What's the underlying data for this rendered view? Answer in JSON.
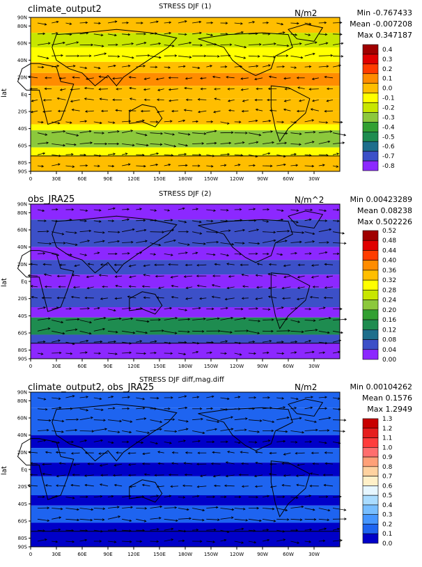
{
  "chart_data": [
    {
      "type": "heatmap",
      "title": "STRESS DJF (1)",
      "left_label": "climate_output2",
      "units": "N/m2",
      "stats": {
        "min": "Min -0.767433",
        "mean": "Mean -0.007208",
        "max": "Max 0.347187"
      },
      "ylabel": "lat",
      "xticks": [
        "0",
        "30E",
        "60E",
        "90E",
        "120E",
        "150E",
        "180W",
        "150W",
        "120W",
        "90W",
        "60W",
        "30W"
      ],
      "yticks": [
        "90N",
        "80N",
        "60N",
        "40N",
        "20N",
        "Eq",
        "20S",
        "40S",
        "60S",
        "80S",
        "90S"
      ],
      "colorbar": {
        "labels": [
          "0.4",
          "0.3",
          "0.2",
          "0.1",
          "0.0",
          "-0.1",
          "-0.2",
          "-0.3",
          "-0.4",
          "-0.5",
          "-0.6",
          "-0.7",
          "-0.8"
        ],
        "colors": [
          "#a00000",
          "#e00000",
          "#ff3c00",
          "#ff8c00",
          "#ffbe00",
          "#ffff00",
          "#c8e600",
          "#8cc83c",
          "#32a032",
          "#1e8c50",
          "#1e6e8c",
          "#3c50c8",
          "#8c28ff"
        ]
      },
      "bands": [
        {
          "lat_from": 90,
          "lat_to": 72,
          "color": "#ffbe00"
        },
        {
          "lat_from": 72,
          "lat_to": 55,
          "color": "#c8e600"
        },
        {
          "lat_from": 55,
          "lat_to": 38,
          "color": "#ffff00"
        },
        {
          "lat_from": 38,
          "lat_to": 25,
          "color": "#ffbe00"
        },
        {
          "lat_from": 25,
          "lat_to": 10,
          "color": "#ff8c00"
        },
        {
          "lat_from": 10,
          "lat_to": -5,
          "color": "#ffbe00"
        },
        {
          "lat_from": -5,
          "lat_to": -20,
          "color": "#ffbe00"
        },
        {
          "lat_from": -20,
          "lat_to": -35,
          "color": "#ffbe00"
        },
        {
          "lat_from": -35,
          "lat_to": -42,
          "color": "#ffff00"
        },
        {
          "lat_from": -42,
          "lat_to": -62,
          "color": "#8cc83c"
        },
        {
          "lat_from": -62,
          "lat_to": -72,
          "color": "#ffff00"
        },
        {
          "lat_from": -72,
          "lat_to": -90,
          "color": "#ffbe00"
        }
      ]
    },
    {
      "type": "heatmap",
      "title": "STRESS DJF (2)",
      "left_label": "obs_JRA25",
      "units": "N/m^2",
      "stats": {
        "min": "Min 0.00423289",
        "mean": "Mean 0.08238",
        "max": "Max 0.502226"
      },
      "ylabel": "lat",
      "xticks": [
        "0",
        "30E",
        "60E",
        "90E",
        "120E",
        "150E",
        "180W",
        "150W",
        "120W",
        "90W",
        "60W",
        "30W"
      ],
      "yticks": [
        "90N",
        "80N",
        "60N",
        "40N",
        "20N",
        "Eq",
        "20S",
        "40S",
        "60S",
        "80S",
        "90S"
      ],
      "colorbar": {
        "labels": [
          "0.52",
          "0.48",
          "0.44",
          "0.40",
          "0.36",
          "0.32",
          "0.28",
          "0.24",
          "0.20",
          "0.16",
          "0.12",
          "0.08",
          "0.04",
          "0.00"
        ],
        "colors": [
          "#a00000",
          "#e00000",
          "#ff3c00",
          "#ff8c00",
          "#ffbe00",
          "#ffff00",
          "#c8e600",
          "#8cc83c",
          "#32a032",
          "#1e8c50",
          "#1e6e8c",
          "#3c50c8",
          "#8c28ff"
        ]
      },
      "bands": [
        {
          "lat_from": 90,
          "lat_to": 72,
          "color": "#8c28ff"
        },
        {
          "lat_from": 72,
          "lat_to": 40,
          "color": "#3c50c8"
        },
        {
          "lat_from": 40,
          "lat_to": 25,
          "color": "#8c28ff"
        },
        {
          "lat_from": 25,
          "lat_to": 8,
          "color": "#3c50c8"
        },
        {
          "lat_from": 8,
          "lat_to": -8,
          "color": "#8c28ff"
        },
        {
          "lat_from": -8,
          "lat_to": -30,
          "color": "#3c50c8"
        },
        {
          "lat_from": -30,
          "lat_to": -42,
          "color": "#8c28ff"
        },
        {
          "lat_from": -42,
          "lat_to": -62,
          "color": "#1e8c50"
        },
        {
          "lat_from": -62,
          "lat_to": -72,
          "color": "#3c50c8"
        },
        {
          "lat_from": -72,
          "lat_to": -90,
          "color": "#8c28ff"
        }
      ]
    },
    {
      "type": "heatmap",
      "title": "STRESS DJF diff,mag.diff",
      "left_label": "climate_output2, obs_JRA25",
      "units": "N/m2",
      "stats": {
        "min": "Min 0.00104262",
        "mean": "Mean 0.1576",
        "max": "Max 1.2949"
      },
      "ylabel": "lat",
      "xticks": [
        "0",
        "30E",
        "60E",
        "90E",
        "120E",
        "150E",
        "180W",
        "150W",
        "120W",
        "90W",
        "60W",
        "30W"
      ],
      "yticks": [
        "90N",
        "80N",
        "60N",
        "40N",
        "20N",
        "Eq",
        "20S",
        "40S",
        "60S",
        "80S",
        "90S"
      ],
      "colorbar": {
        "labels": [
          "1.3",
          "1.2",
          "1.1",
          "1.0",
          "0.9",
          "0.8",
          "0.7",
          "0.6",
          "0.5",
          "0.4",
          "0.3",
          "0.2",
          "0.1",
          "0.0"
        ],
        "colors": [
          "#c80000",
          "#e61e1e",
          "#ff3c3c",
          "#ff6e6e",
          "#ffa078",
          "#ffd2a0",
          "#fff0c8",
          "#e6f6ff",
          "#aadcff",
          "#78beff",
          "#4696ff",
          "#1e64f0",
          "#0000c8"
        ]
      },
      "bands": [
        {
          "lat_from": 90,
          "lat_to": 72,
          "color": "#1e64f0"
        },
        {
          "lat_from": 72,
          "lat_to": 40,
          "color": "#1e64f0"
        },
        {
          "lat_from": 40,
          "lat_to": 25,
          "color": "#0000c8"
        },
        {
          "lat_from": 25,
          "lat_to": 8,
          "color": "#1e64f0"
        },
        {
          "lat_from": 8,
          "lat_to": -8,
          "color": "#0000c8"
        },
        {
          "lat_from": -8,
          "lat_to": -30,
          "color": "#1e64f0"
        },
        {
          "lat_from": -30,
          "lat_to": -42,
          "color": "#0000c8"
        },
        {
          "lat_from": -42,
          "lat_to": -62,
          "color": "#1e64f0"
        },
        {
          "lat_from": -62,
          "lat_to": -72,
          "color": "#0000c8"
        },
        {
          "lat_from": -72,
          "lat_to": -90,
          "color": "#0000c8"
        }
      ]
    }
  ]
}
